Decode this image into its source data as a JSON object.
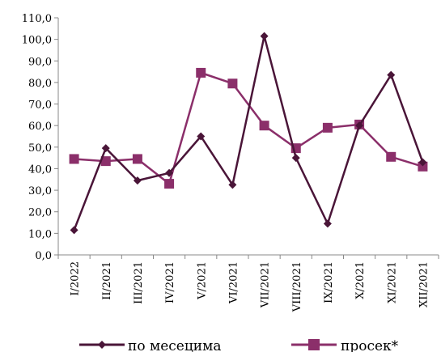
{
  "chart_data": {
    "type": "line",
    "categories": [
      "I/2022",
      "II/2021",
      "III/2021",
      "IV/2021",
      "V/2021",
      "VI/2021",
      "VII/2021",
      "VIII/2021",
      "IX/2021",
      "X/2021",
      "XI/2021",
      "XII/2021"
    ],
    "y_ticks": [
      "0,0",
      "10,0",
      "20,0",
      "30,0",
      "40,0",
      "50,0",
      "60,0",
      "70,0",
      "80,0",
      "90,0",
      "100,0",
      "110,0"
    ],
    "ylim": [
      0,
      110
    ],
    "grid": false,
    "legend_position": "bottom",
    "series": [
      {
        "name": "по месецима",
        "color": "#4a1538",
        "marker": "diamond",
        "values": [
          11.5,
          49.5,
          34.5,
          38.0,
          55.0,
          32.5,
          101.5,
          45.0,
          14.5,
          60.0,
          83.5,
          43.0
        ]
      },
      {
        "name": "просек*",
        "color": "#8b2f6a",
        "marker": "square",
        "values": [
          44.5,
          43.5,
          44.5,
          33.0,
          84.5,
          79.5,
          60.0,
          49.5,
          59.0,
          60.5,
          45.5,
          41.0
        ]
      }
    ]
  }
}
